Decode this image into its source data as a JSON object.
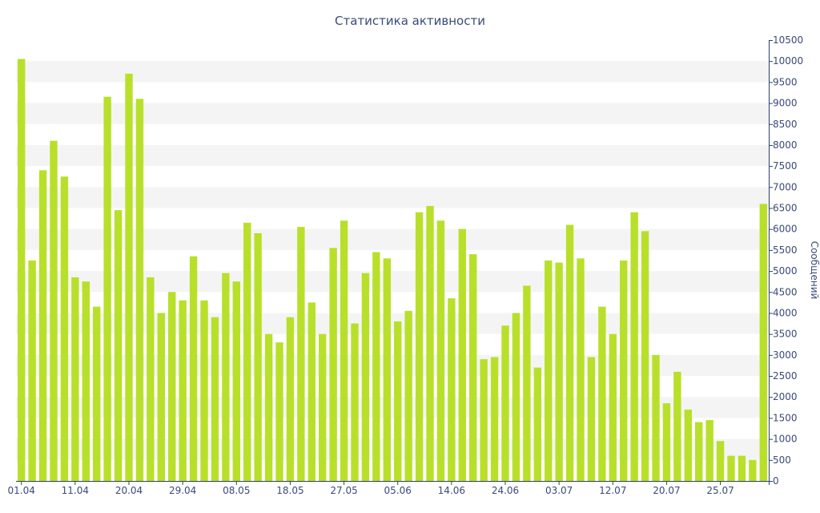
{
  "colors": {
    "bar": "#b8e02a",
    "band": "#f4f4f4",
    "axis": "#2c3e6e",
    "text": "#3a4a7a"
  },
  "chart_data": {
    "type": "bar",
    "title": "Статистика активности",
    "ylabel": "Сообщений",
    "xlabel": "",
    "ylim": [
      0,
      10500
    ],
    "y_ticks": [
      0,
      500,
      1000,
      1500,
      2000,
      2500,
      3000,
      3500,
      4000,
      4500,
      5000,
      5500,
      6000,
      6500,
      7000,
      7500,
      8000,
      8500,
      9000,
      9500,
      10000,
      10500
    ],
    "y_axis_position": "right",
    "grid": "alternating horizontal bands",
    "x_tick_labels": [
      {
        "index": 0,
        "label": "01.04"
      },
      {
        "index": 5,
        "label": "11.04"
      },
      {
        "index": 10,
        "label": "20.04"
      },
      {
        "index": 15,
        "label": "29.04"
      },
      {
        "index": 20,
        "label": "08.05"
      },
      {
        "index": 25,
        "label": "18.05"
      },
      {
        "index": 30,
        "label": "27.05"
      },
      {
        "index": 35,
        "label": "05.06"
      },
      {
        "index": 40,
        "label": "14.06"
      },
      {
        "index": 45,
        "label": "24.06"
      },
      {
        "index": 50,
        "label": "03.07"
      },
      {
        "index": 55,
        "label": "12.07"
      },
      {
        "index": 60,
        "label": "20.07"
      },
      {
        "index": 65,
        "label": "25.07"
      }
    ],
    "values": [
      10050,
      5250,
      7400,
      8100,
      7250,
      4850,
      4750,
      4150,
      9150,
      6450,
      9700,
      9100,
      4850,
      4000,
      4500,
      4300,
      5350,
      4300,
      3900,
      4950,
      4750,
      6150,
      5900,
      3500,
      3300,
      3900,
      6050,
      4250,
      3500,
      5550,
      6200,
      3750,
      4950,
      5450,
      5300,
      3800,
      4050,
      6400,
      6550,
      6200,
      4350,
      6000,
      5400,
      2900,
      2950,
      3700,
      4000,
      4650,
      2700,
      5250,
      5200,
      6100,
      5300,
      2950,
      4150,
      3500,
      5250,
      6400,
      5950,
      3000,
      1850,
      2600,
      1700,
      1400,
      1450,
      950,
      600,
      600,
      500,
      6600
    ]
  }
}
